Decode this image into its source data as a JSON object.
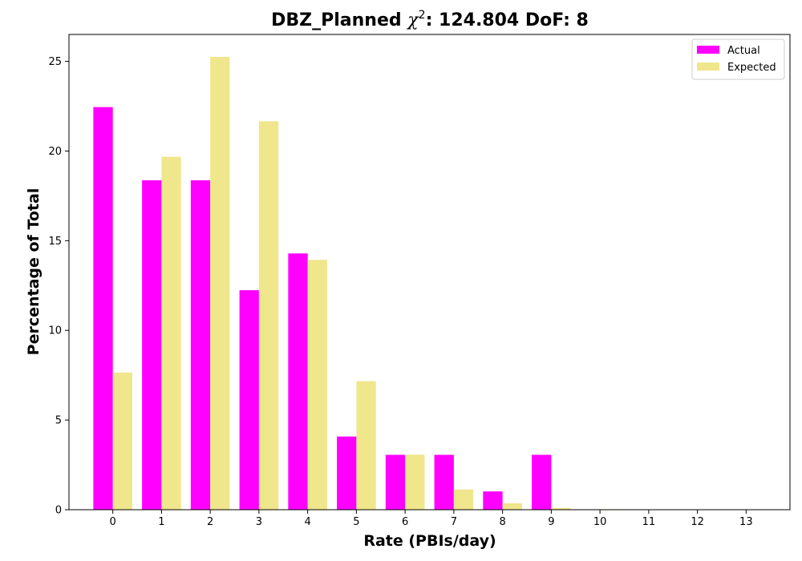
{
  "chart_data": {
    "type": "bar",
    "title_prefix": "DBZ_Planned ",
    "title_symbol": "χ",
    "title_exponent": "2",
    "title_suffix": ": 124.804 DoF: 8",
    "xlabel": "Rate (PBIs/day)",
    "ylabel": "Percentage of Total",
    "categories": [
      "0",
      "1",
      "2",
      "3",
      "4",
      "5",
      "6",
      "7",
      "8",
      "9",
      "10",
      "11",
      "12",
      "13"
    ],
    "x": [
      0,
      1,
      2,
      3,
      4,
      5,
      6,
      7,
      8,
      9,
      10,
      11,
      12,
      13
    ],
    "series": [
      {
        "name": "Actual",
        "color": "#ff00ff",
        "values": [
          22.45,
          18.37,
          18.37,
          12.24,
          14.29,
          4.08,
          3.06,
          3.06,
          1.02,
          3.06,
          0,
          0,
          0,
          0
        ]
      },
      {
        "name": "Expected",
        "color": "#f0e68c",
        "values": [
          7.65,
          19.68,
          25.25,
          21.66,
          13.93,
          7.17,
          3.07,
          1.13,
          0.36,
          0.1,
          0.03,
          0.01,
          0,
          0
        ]
      }
    ],
    "yticks": [
      0,
      5,
      10,
      15,
      20,
      25
    ],
    "xlim": [
      -0.9,
      13.9
    ],
    "ylim": [
      0,
      26.5
    ],
    "legend_position": "top-right",
    "grid": false
  }
}
